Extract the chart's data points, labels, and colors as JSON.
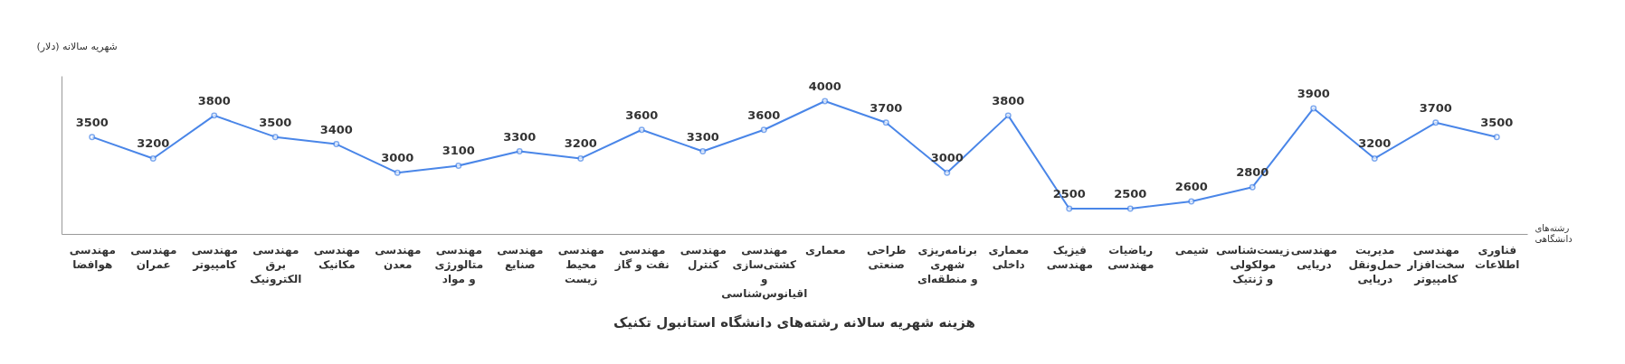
{
  "chart_data": {
    "type": "line",
    "title": "هزینه شهریه سالانه رشته‌های دانشگاه استانبول تکنیک",
    "xlabel": "رشته‌های\nدانشگاهی",
    "ylabel": "(دلار) شهریه سالانه",
    "categories": [
      "مهندسی\nهوافضا",
      "مهندسی\nعمران",
      "مهندسی\nکامپیوتر",
      "مهندسی\nبرق\nالکترونیک",
      "مهندسی\nمکانیک",
      "مهندسی\nمعدن",
      "مهندسی\nمتالورژی\nو مواد",
      "مهندسی\nصنایع",
      "مهندسی\nمحیط\nزیست",
      "مهندسی\nنفت و گاز",
      "مهندسی\nکنترل",
      "مهندسی\nکشتی‌سازی\nو\nاقیانوس‌شناسی",
      "معماری",
      "طراحی\nصنعتی",
      "برنامه‌ریزی\nشهری\nو منطقه‌ای",
      "معماری\nداخلی",
      "فیزیک\nمهندسی",
      "ریاضیات\nمهندسی",
      "شیمی",
      "زیست‌شناسی\nمولکولی\nو ژنتیک",
      "مهندسی\nدریایی",
      "مدیریت\nحمل‌ونقل\nدریایی",
      "مهندسی\nسخت‌افزار\nکامپیوتر",
      "فناوری\nاطلاعات"
    ],
    "series": [
      {
        "color": "#4a86e8",
        "values": [
          3500,
          3200,
          3800,
          3500,
          3400,
          3000,
          3100,
          3300,
          3200,
          3600,
          3300,
          3600,
          4000,
          3700,
          3000,
          3800,
          2500,
          2500,
          2600,
          2800,
          3900,
          3200,
          3700,
          3500
        ]
      }
    ],
    "data_labels": true,
    "tick_labels": "x",
    "grid": false,
    "marker": "circle",
    "line_style": "solid"
  }
}
